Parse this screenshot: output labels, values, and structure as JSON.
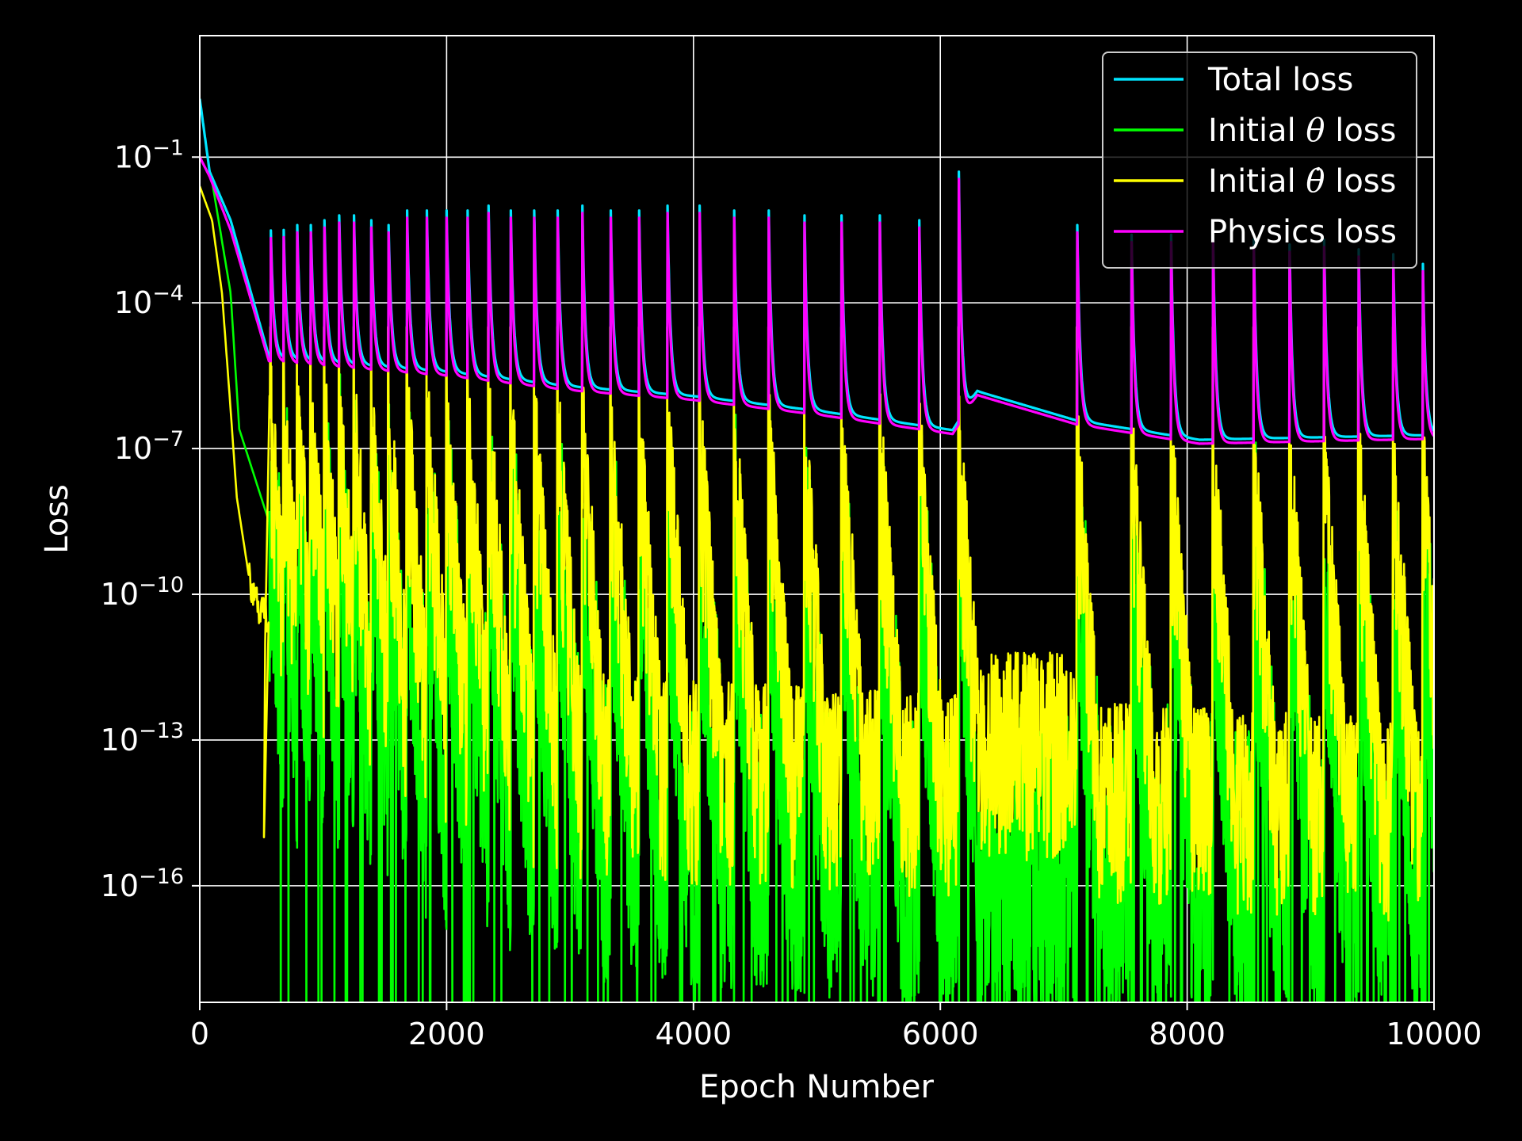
{
  "chart_data": {
    "type": "line",
    "xlabel": "Epoch Number",
    "ylabel": "Loss",
    "yscale": "log",
    "xlim": [
      0,
      10000
    ],
    "ylim_log10": [
      -18.4,
      1.5
    ],
    "grid": true,
    "legend_position": "top-right",
    "x_ticks": [
      "0",
      "2000",
      "4000",
      "6000",
      "8000",
      "10000"
    ],
    "y_ticks": [
      {
        "base": "10",
        "exp": "−1",
        "log10": -1
      },
      {
        "base": "10",
        "exp": "−4",
        "log10": -4
      },
      {
        "base": "10",
        "exp": "−7",
        "log10": -7
      },
      {
        "base": "10",
        "exp": "−10",
        "log10": -10
      },
      {
        "base": "10",
        "exp": "−13",
        "log10": -13
      },
      {
        "base": "10",
        "exp": "−16",
        "log10": -16
      }
    ],
    "series": [
      {
        "name": "Total loss",
        "legend_prefix": "Total loss",
        "legend_symbol": "",
        "legend_suffix": "",
        "color": "#00e5ff",
        "decay_log10": [
          [
            0,
            0.2
          ],
          [
            80,
            -1.3
          ],
          [
            250,
            -2.3
          ],
          [
            560,
            -5.1
          ]
        ],
        "spike_epochs": [
          575,
          680,
          790,
          900,
          1010,
          1130,
          1250,
          1390,
          1530,
          1680,
          1840,
          2000,
          2170,
          2340,
          2520,
          2710,
          2900,
          3100,
          3330,
          3560,
          3790,
          4050,
          4330,
          4610,
          4900,
          5200,
          5510,
          5830,
          6150,
          7110,
          7550,
          7870,
          8210,
          8540,
          8830,
          9110,
          9390,
          9670,
          9910
        ],
        "spike_peaks_log10": [
          -2.4,
          -2.5,
          -2.4,
          -2.4,
          -2.3,
          -2.2,
          -2.2,
          -2.3,
          -2.4,
          -2.1,
          -2.1,
          -2.1,
          -2.1,
          -2.0,
          -2.1,
          -2.1,
          -2.1,
          -2.0,
          -2.1,
          -2.1,
          -2.0,
          -2.0,
          -2.1,
          -2.1,
          -2.2,
          -2.2,
          -2.2,
          -2.3,
          -1.3,
          -2.4,
          -2.6,
          -2.6,
          -2.6,
          -2.7,
          -2.8,
          -2.7,
          -2.9,
          -3.0,
          -3.2
        ],
        "baseline_log10": [
          [
            560,
            -5.2
          ],
          [
            1000,
            -5.3
          ],
          [
            2000,
            -5.5
          ],
          [
            3000,
            -5.8
          ],
          [
            4000,
            -6.0
          ],
          [
            5000,
            -6.3
          ],
          [
            6100,
            -6.7
          ],
          [
            6300,
            -5.9
          ],
          [
            7100,
            -6.5
          ],
          [
            8100,
            -6.9
          ],
          [
            10000,
            -6.8
          ]
        ]
      },
      {
        "name": "Initial θ loss",
        "legend_prefix": "Initial ",
        "legend_symbol": "θ",
        "legend_suffix": " loss",
        "color": "#00ff00",
        "decay_log10": [
          [
            0,
            -1.0
          ],
          [
            100,
            -1.5
          ],
          [
            250,
            -3.8
          ],
          [
            320,
            -6.6
          ],
          [
            560,
            -8.5
          ]
        ]
      },
      {
        "name": "Initial θ̇ loss",
        "legend_prefix": "Initial ",
        "legend_symbol": "θ̇",
        "legend_suffix": " loss",
        "color": "#ffff00",
        "decay_log10": [
          [
            0,
            -1.6
          ],
          [
            100,
            -2.3
          ],
          [
            180,
            -3.8
          ],
          [
            250,
            -6.2
          ],
          [
            300,
            -8.0
          ],
          [
            420,
            -10.0
          ],
          [
            560,
            -10.5
          ]
        ]
      },
      {
        "name": "Physics loss",
        "legend_prefix": "Physics loss",
        "legend_symbol": "",
        "legend_suffix": "",
        "color": "#ff00ff",
        "decay_log10": [
          [
            0,
            -1.0
          ],
          [
            80,
            -1.4
          ],
          [
            250,
            -2.5
          ],
          [
            560,
            -5.2
          ]
        ]
      }
    ]
  }
}
